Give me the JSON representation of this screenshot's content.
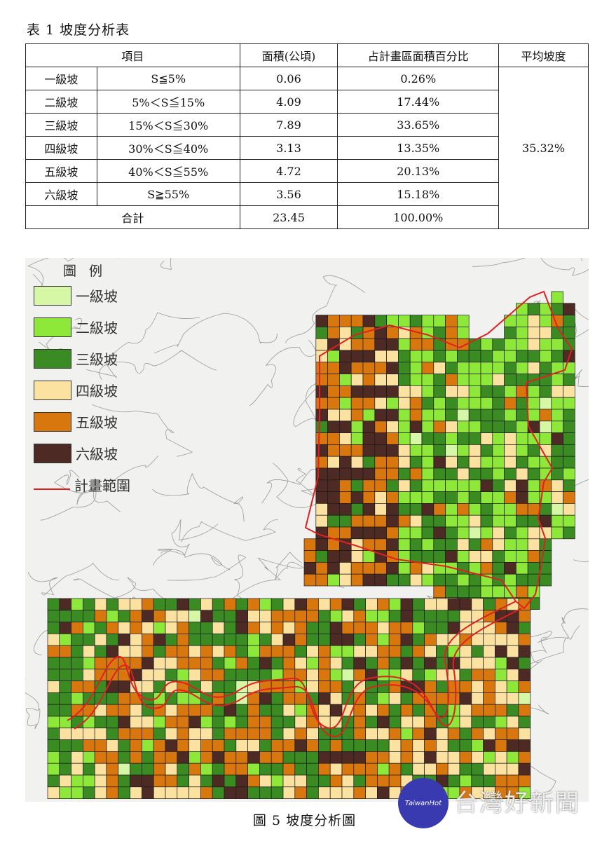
{
  "table_caption": "表 1 坡度分析表",
  "table": {
    "headers": {
      "item": "項目",
      "area": "面積(公頃)",
      "percent": "占計畫區面積百分比",
      "avg": "平均坡度"
    },
    "rows": [
      {
        "grade": "一級坡",
        "range": "S≦5%",
        "area": "0.06",
        "percent": "0.26%"
      },
      {
        "grade": "二級坡",
        "range": "5%＜S≦15%",
        "area": "4.09",
        "percent": "17.44%"
      },
      {
        "grade": "三級坡",
        "range": "15%＜S≦30%",
        "area": "7.89",
        "percent": "33.65%"
      },
      {
        "grade": "四級坡",
        "range": "30%＜S≦40%",
        "area": "3.13",
        "percent": "13.35%"
      },
      {
        "grade": "五級坡",
        "range": "40%＜S≦55%",
        "area": "4.72",
        "percent": "20.13%"
      },
      {
        "grade": "六級坡",
        "range": "S≧55%",
        "area": "3.56",
        "percent": "15.18%"
      }
    ],
    "average": "35.32%",
    "total": {
      "label": "合計",
      "area": "23.45",
      "percent": "100.00%"
    }
  },
  "legend": {
    "title": "圖 例",
    "items": [
      {
        "label": "一級坡",
        "color": "#d6f7a6"
      },
      {
        "label": "二級坡",
        "color": "#8ee83a"
      },
      {
        "label": "三級坡",
        "color": "#3a8c22"
      },
      {
        "label": "四級坡",
        "color": "#fbe2a0"
      },
      {
        "label": "五級坡",
        "color": "#d9770f"
      },
      {
        "label": "六級坡",
        "color": "#4e2a24"
      }
    ],
    "boundary": {
      "label": "計畫範圍",
      "color": "#e02020"
    }
  },
  "figure_caption": "圖 5 坡度分析圖",
  "watermark": {
    "logo_text": "TaiwanHot",
    "text": "台灣好新聞"
  }
}
